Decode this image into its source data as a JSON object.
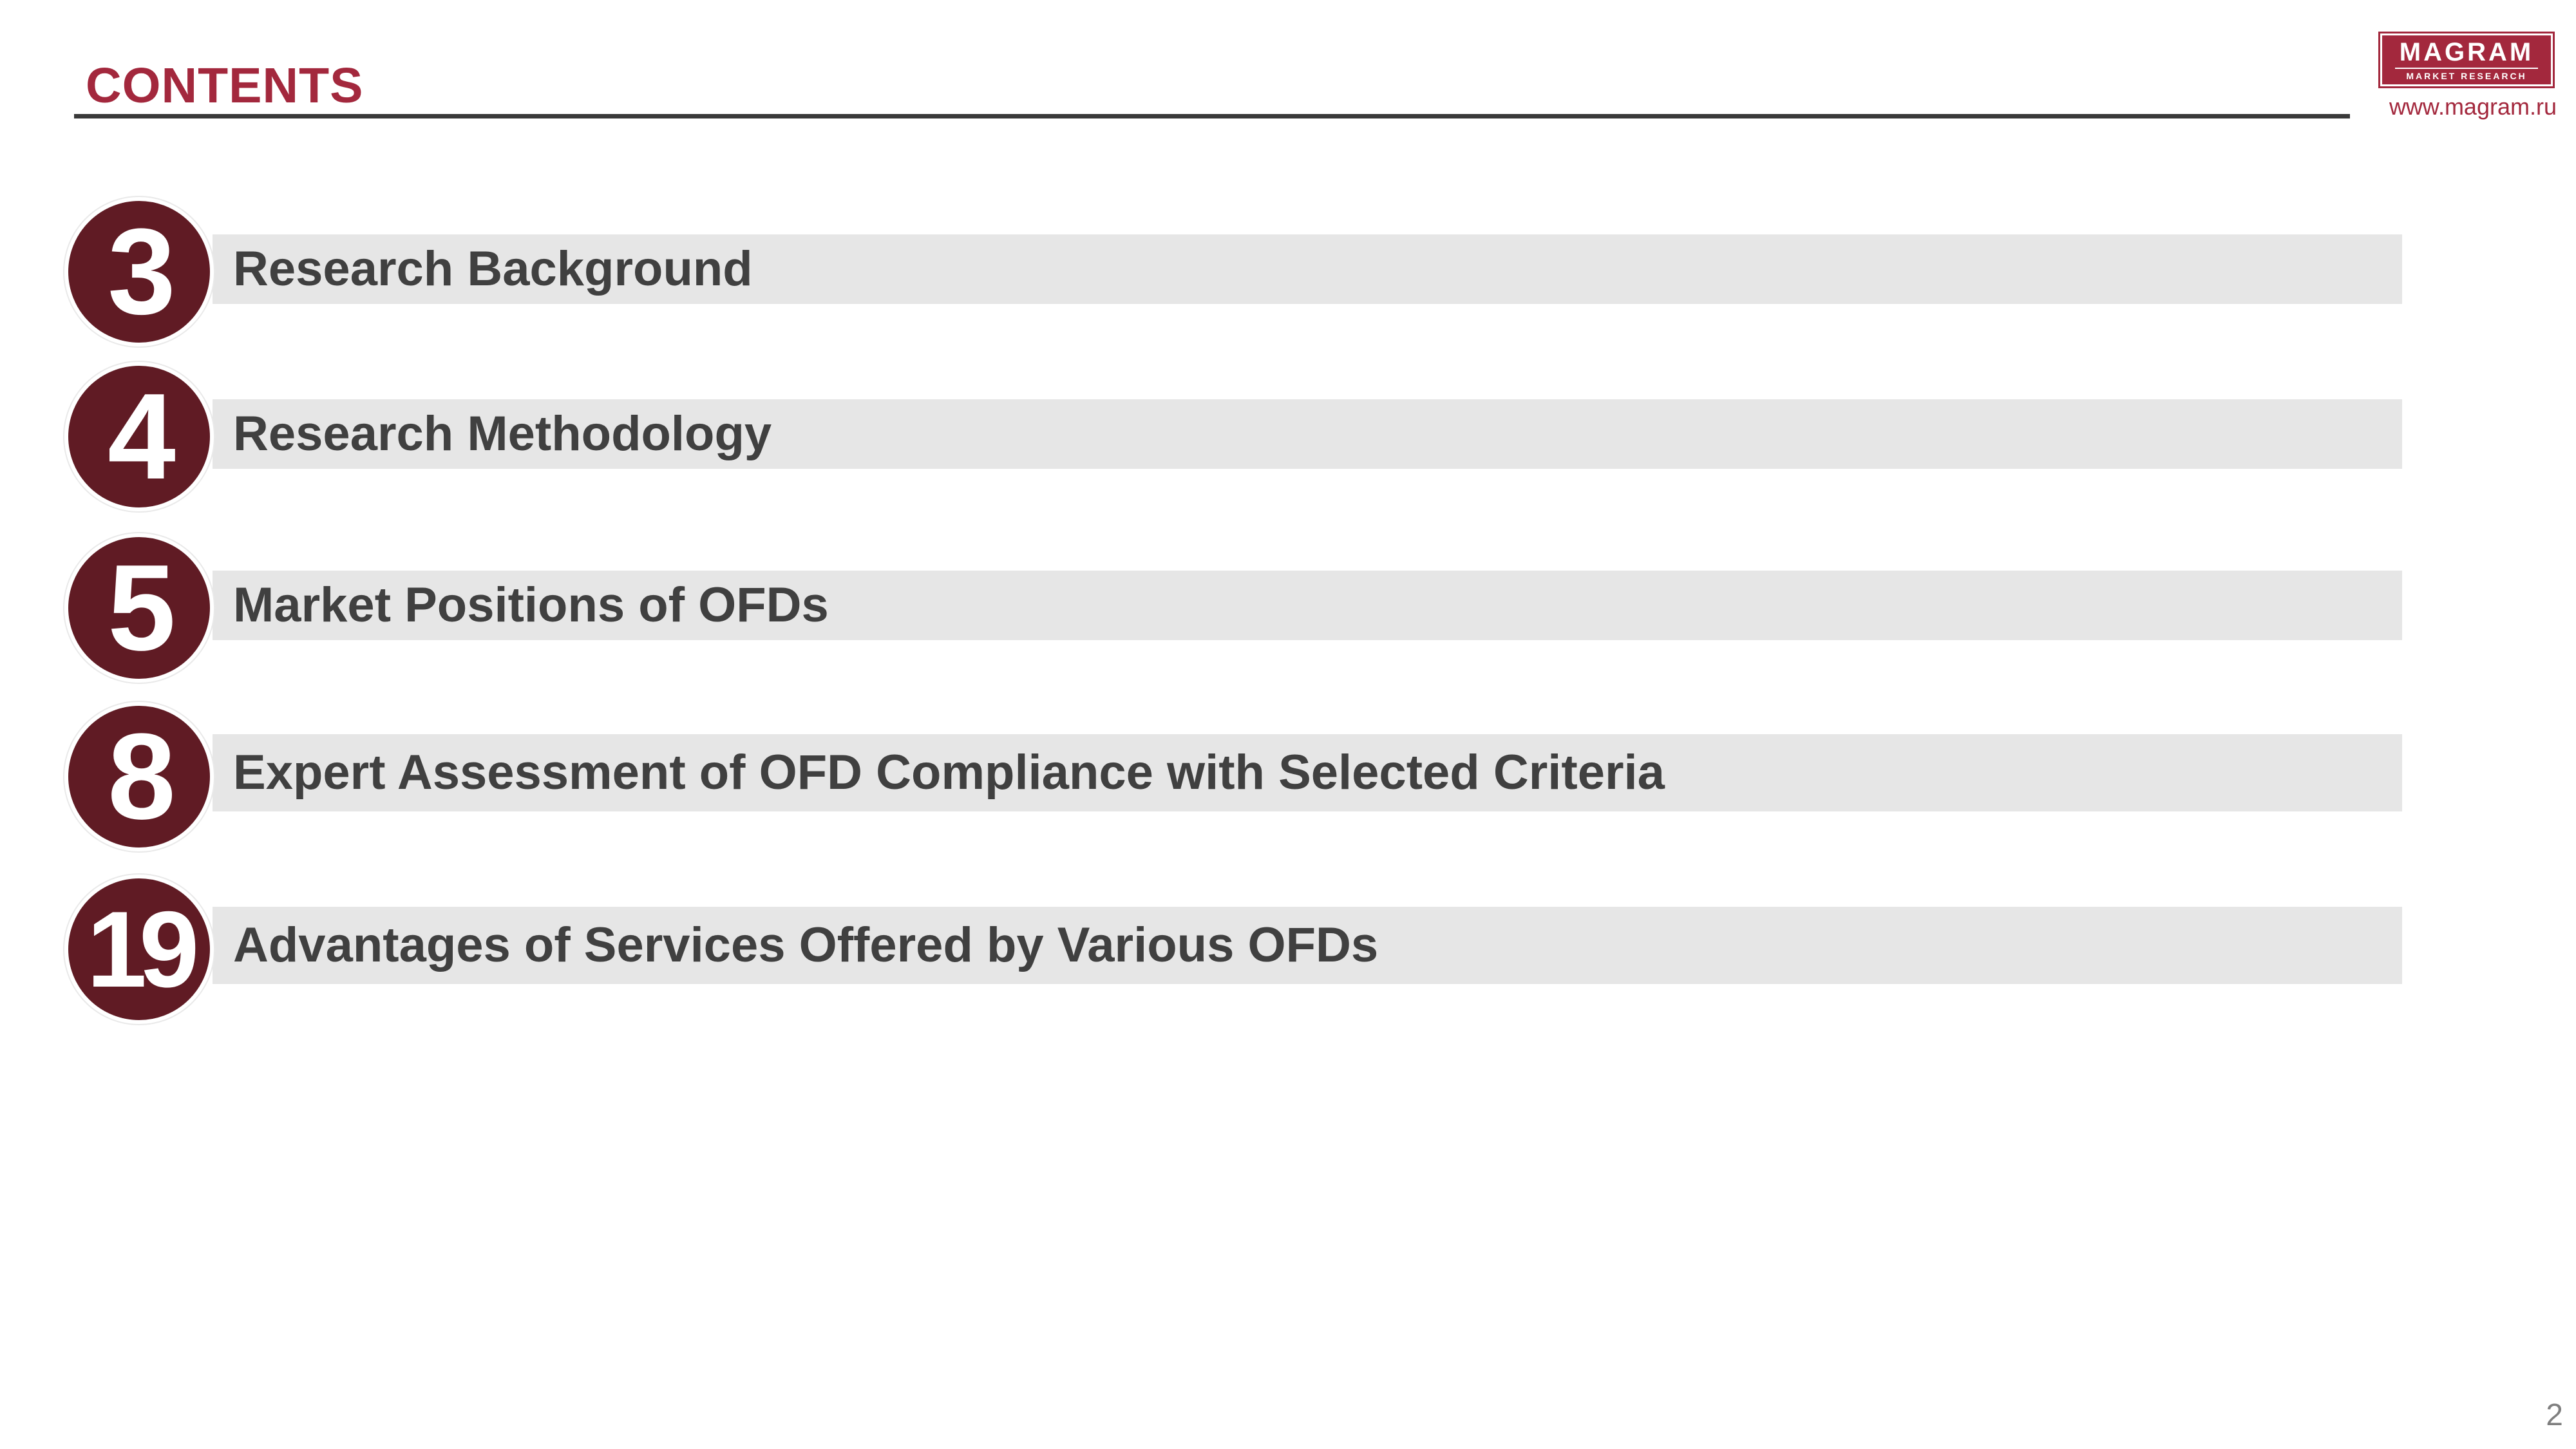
{
  "header": {
    "title": "CONTENTS"
  },
  "logo": {
    "brand": "MAGRAM",
    "tagline": "MARKET RESEARCH",
    "website": "www.magram.ru"
  },
  "toc": {
    "items": [
      {
        "page": "3",
        "label": "Research Background"
      },
      {
        "page": "4",
        "label": "Research Methodology"
      },
      {
        "page": "5",
        "label": "Market Positions of OFDs"
      },
      {
        "page": "8",
        "label": "Expert Assessment of OFD Compliance with Selected Criteria"
      },
      {
        "page": "19",
        "label": "Advantages of Services Offered by Various OFDs"
      }
    ]
  },
  "footer": {
    "page_number": "2"
  },
  "colors": {
    "accent": "#a3283d",
    "circle": "#601b24",
    "bar": "#e6e6e6",
    "text": "#404040"
  }
}
